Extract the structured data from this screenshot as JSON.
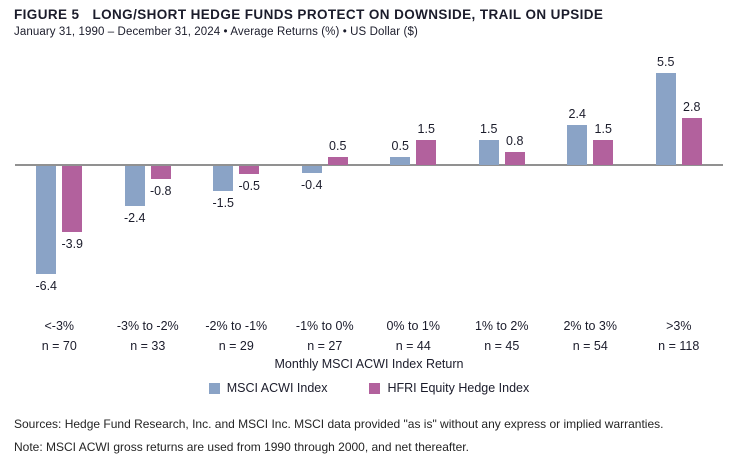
{
  "header": {
    "figure_label": "FIGURE 5",
    "title": "LONG/SHORT HEDGE FUNDS PROTECT ON DOWNSIDE, TRAIL ON UPSIDE",
    "subtitle": "January 31, 1990 – December 31, 2024 • Average Returns (%) • US Dollar ($)"
  },
  "chart_data": {
    "type": "bar",
    "categories": [
      "<-3%",
      "-3% to -2%",
      "-2% to -1%",
      "-1% to 0%",
      "0% to 1%",
      "1% to 2%",
      "2% to 3%",
      ">3%"
    ],
    "counts": [
      "n = 70",
      "n = 33",
      "n = 29",
      "n = 27",
      "n = 44",
      "n = 45",
      "n = 54",
      "n = 118"
    ],
    "series": [
      {
        "name": "MSCI ACWI Index",
        "color": "#8aa3c6",
        "values": [
          -6.4,
          -2.4,
          -1.5,
          -0.4,
          0.5,
          1.5,
          2.4,
          5.5
        ]
      },
      {
        "name": "HFRI Equity Hedge Index",
        "color": "#b2619d",
        "values": [
          -3.9,
          -0.8,
          -0.5,
          0.5,
          1.5,
          0.8,
          1.5,
          2.8
        ]
      }
    ],
    "xlabel": "Monthly MSCI ACWI Index Return",
    "ylabel": "",
    "ylim": [
      -7.5,
      6.5
    ],
    "baseline": 0,
    "grid": false,
    "legend_position": "bottom",
    "zero_line_color": "#919191"
  },
  "footer": {
    "sources": "Sources: Hedge Fund Research, Inc. and MSCI Inc. MSCI data provided \"as is\" without any express or implied warranties.",
    "note": "Note: MSCI ACWI gross returns are used from 1990 through 2000, and net thereafter."
  }
}
